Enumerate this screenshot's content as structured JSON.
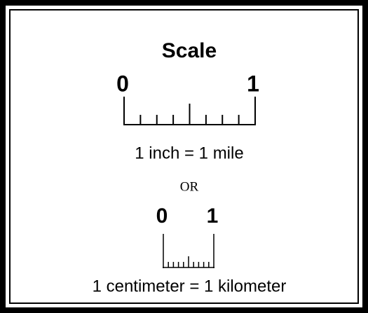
{
  "title": "Scale",
  "scale_inch": {
    "start": "0",
    "end": "1",
    "caption": "1 inch = 1 mile"
  },
  "separator": "OR",
  "scale_cm": {
    "start": "0",
    "end": "1",
    "caption": "1 centimeter = 1 kilometer"
  }
}
